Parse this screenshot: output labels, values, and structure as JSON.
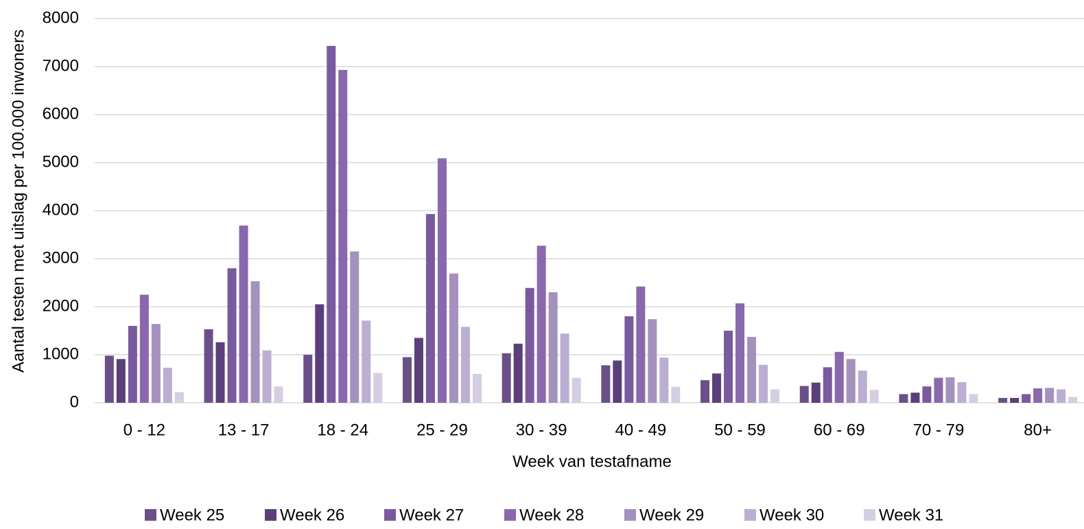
{
  "chart_data": {
    "type": "bar",
    "x_label": "Week van testafname",
    "y_label": "Aantal testen met uitslag per 100.000 inwoners",
    "categories": [
      "0 - 12",
      "13 - 17",
      "18 - 24",
      "25 - 29",
      "30 - 39",
      "40 - 49",
      "50 - 59",
      "60 - 69",
      "70 - 79",
      "80+"
    ],
    "series": [
      {
        "name": "Week 25",
        "color": "#6b5088",
        "values": [
          980,
          1530,
          1000,
          950,
          1030,
          780,
          470,
          350,
          180,
          100
        ]
      },
      {
        "name": "Week 26",
        "color": "#5b3f7a",
        "values": [
          910,
          1260,
          2050,
          1350,
          1230,
          880,
          610,
          420,
          210,
          100
        ]
      },
      {
        "name": "Week 27",
        "color": "#7a5a9e",
        "values": [
          1600,
          2800,
          7430,
          3930,
          2390,
          1800,
          1500,
          740,
          340,
          180
        ]
      },
      {
        "name": "Week 28",
        "color": "#8a68ad",
        "values": [
          2250,
          3690,
          6930,
          5090,
          3270,
          2420,
          2070,
          1060,
          520,
          300
        ]
      },
      {
        "name": "Week 29",
        "color": "#a491bd",
        "values": [
          1640,
          2530,
          3150,
          2690,
          2300,
          1740,
          1370,
          910,
          530,
          310
        ]
      },
      {
        "name": "Week 30",
        "color": "#bcaed2",
        "values": [
          730,
          1090,
          1710,
          1580,
          1440,
          940,
          790,
          670,
          430,
          280
        ]
      },
      {
        "name": "Week 31",
        "color": "#d5cee2",
        "values": [
          220,
          340,
          620,
          600,
          520,
          330,
          280,
          270,
          180,
          120
        ]
      }
    ],
    "ylim": [
      0,
      8000
    ],
    "yticks": [
      0,
      1000,
      2000,
      3000,
      4000,
      5000,
      6000,
      7000,
      8000
    ],
    "grid": true
  }
}
